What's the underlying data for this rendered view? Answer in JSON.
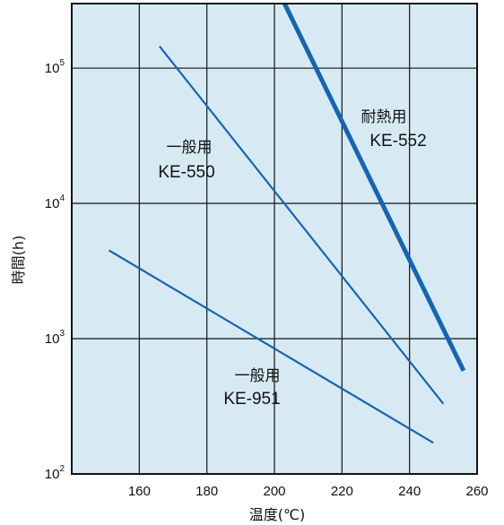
{
  "chart_data": {
    "type": "line",
    "title": "",
    "xlabel": "温度(℃)",
    "ylabel": "時間(h)",
    "x_scale": "linear",
    "y_scale": "log",
    "xlim": [
      140,
      260
    ],
    "ylim": [
      100,
      300000
    ],
    "x_ticks": [
      "160",
      "180",
      "200",
      "220",
      "240",
      "260"
    ],
    "y_ticks": [
      {
        "base": "10",
        "exp": "2",
        "value": 100
      },
      {
        "base": "10",
        "exp": "3",
        "value": 1000
      },
      {
        "base": "10",
        "exp": "4",
        "value": 10000
      },
      {
        "base": "10",
        "exp": "5",
        "value": 100000
      }
    ],
    "grid": true,
    "background_color": "#d7eaf4",
    "line_color": "#1565b3",
    "series": [
      {
        "name": "KE-552",
        "label_lines": [
          "耐熱用",
          "KE-552"
        ],
        "x": [
          203,
          256
        ],
        "y": [
          300000,
          580
        ],
        "width": "thick"
      },
      {
        "name": "KE-550",
        "label_lines": [
          "一般用",
          "KE-550"
        ],
        "x": [
          166,
          250
        ],
        "y": [
          145000,
          330
        ],
        "width": "thin"
      },
      {
        "name": "KE-951",
        "label_lines": [
          "一般用",
          "KE-951"
        ],
        "x": [
          151,
          247
        ],
        "y": [
          4500,
          170
        ],
        "width": "thin"
      }
    ]
  }
}
